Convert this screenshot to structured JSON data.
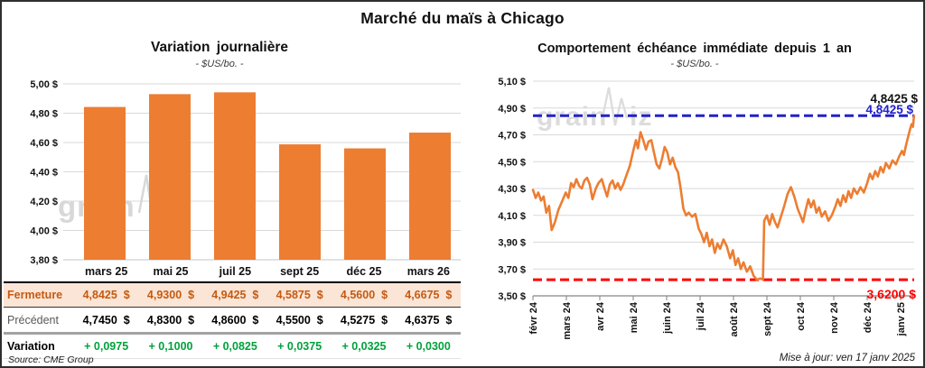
{
  "header": {
    "title": "Marché du maïs à Chicago"
  },
  "footer": {
    "source": "Source: CME Group",
    "updated": "Mise à jour: ven 17 janv 2025"
  },
  "watermark": {
    "part1": "grain",
    "part2": "iz"
  },
  "colors": {
    "orange": "#ED7D31",
    "blue": "#2121CC",
    "red": "#FE0000",
    "green": "#00A23C",
    "peach": "#FBE5D6",
    "dark_orange": "#C55A11",
    "grid": "#D9D9D9",
    "axis": "#9a9a9a",
    "watermark": "#DCDCDC"
  },
  "chart_data": [
    {
      "type": "bar",
      "title": "Variation journalière",
      "subtitle": "- $US/bo. -",
      "categories": [
        "mars 25",
        "mai 25",
        "juil 25",
        "sept 25",
        "déc 25",
        "mars 26"
      ],
      "values": [
        4.8425,
        4.93,
        4.9425,
        4.5875,
        4.56,
        4.6675
      ],
      "ylim": [
        3.8,
        5.0
      ],
      "grid": true,
      "yticks": [
        {
          "v": 5.0,
          "label": "5,00 $"
        },
        {
          "v": 4.8,
          "label": "4,80 $"
        },
        {
          "v": 4.6,
          "label": "4,60 $"
        },
        {
          "v": 4.4,
          "label": "4,40 $"
        },
        {
          "v": 4.2,
          "label": "4,20 $"
        },
        {
          "v": 4.0,
          "label": "4,00 $"
        },
        {
          "v": 3.8,
          "label": "3,80 $"
        }
      ]
    },
    {
      "type": "line",
      "title": "Comportement échéance immédiate depuis 1 an",
      "subtitle": "- $US/bo. -",
      "ylim": [
        3.5,
        5.1
      ],
      "grid": true,
      "xlabels": [
        "févr 24",
        "mars 24",
        "avr 24",
        "mai 24",
        "juin 24",
        "juil 24",
        "août 24",
        "sept 24",
        "oct 24",
        "nov 24",
        "déc 24",
        "janv 25"
      ],
      "yticks": [
        {
          "v": 5.1,
          "label": "5,10 $"
        },
        {
          "v": 4.9,
          "label": "4,90 $"
        },
        {
          "v": 4.7,
          "label": "4,70 $"
        },
        {
          "v": 4.5,
          "label": "4,50 $"
        },
        {
          "v": 4.3,
          "label": "4,30 $"
        },
        {
          "v": 4.1,
          "label": "4,10 $"
        },
        {
          "v": 3.9,
          "label": "3,90 $"
        },
        {
          "v": 3.7,
          "label": "3,70 $"
        },
        {
          "v": 3.5,
          "label": "3,50 $"
        }
      ],
      "reference_lines": [
        {
          "name": "last-close",
          "value": 4.8425,
          "style": "dashed",
          "color": "#2121CC"
        },
        {
          "name": "year-low",
          "value": 3.62,
          "style": "dashed",
          "color": "#FE0000"
        }
      ],
      "annotations": [
        {
          "name": "last-close-black",
          "text": "4,8425 $",
          "color": "#111111"
        },
        {
          "name": "last-close-blue",
          "text": "4,8425 $",
          "color": "#2121CC"
        },
        {
          "name": "year-low-red",
          "text": "3,6200 $",
          "color": "#FE0000"
        }
      ],
      "series": [
        {
          "name": "échéance immédiate",
          "points": [
            [
              0.0,
              4.29
            ],
            [
              0.08,
              4.23
            ],
            [
              0.16,
              4.27
            ],
            [
              0.24,
              4.21
            ],
            [
              0.32,
              4.24
            ],
            [
              0.4,
              4.12
            ],
            [
              0.48,
              4.17
            ],
            [
              0.56,
              3.99
            ],
            [
              0.66,
              4.05
            ],
            [
              0.76,
              4.14
            ],
            [
              0.88,
              4.21
            ],
            [
              0.98,
              4.27
            ],
            [
              1.06,
              4.23
            ],
            [
              1.14,
              4.34
            ],
            [
              1.22,
              4.31
            ],
            [
              1.3,
              4.37
            ],
            [
              1.38,
              4.32
            ],
            [
              1.46,
              4.3
            ],
            [
              1.54,
              4.36
            ],
            [
              1.62,
              4.38
            ],
            [
              1.7,
              4.33
            ],
            [
              1.78,
              4.22
            ],
            [
              1.88,
              4.3
            ],
            [
              1.96,
              4.34
            ],
            [
              2.06,
              4.37
            ],
            [
              2.14,
              4.3
            ],
            [
              2.22,
              4.24
            ],
            [
              2.3,
              4.33
            ],
            [
              2.38,
              4.36
            ],
            [
              2.46,
              4.3
            ],
            [
              2.54,
              4.34
            ],
            [
              2.62,
              4.29
            ],
            [
              2.7,
              4.33
            ],
            [
              2.8,
              4.4
            ],
            [
              2.9,
              4.47
            ],
            [
              3.0,
              4.58
            ],
            [
              3.08,
              4.66
            ],
            [
              3.14,
              4.6
            ],
            [
              3.22,
              4.72
            ],
            [
              3.3,
              4.66
            ],
            [
              3.38,
              4.59
            ],
            [
              3.46,
              4.65
            ],
            [
              3.54,
              4.66
            ],
            [
              3.62,
              4.57
            ],
            [
              3.7,
              4.48
            ],
            [
              3.78,
              4.45
            ],
            [
              3.86,
              4.52
            ],
            [
              3.94,
              4.61
            ],
            [
              4.02,
              4.57
            ],
            [
              4.1,
              4.48
            ],
            [
              4.18,
              4.53
            ],
            [
              4.26,
              4.46
            ],
            [
              4.34,
              4.42
            ],
            [
              4.42,
              4.3
            ],
            [
              4.5,
              4.15
            ],
            [
              4.58,
              4.1
            ],
            [
              4.66,
              4.12
            ],
            [
              4.76,
              4.09
            ],
            [
              4.86,
              4.11
            ],
            [
              4.96,
              4.0
            ],
            [
              5.04,
              3.96
            ],
            [
              5.12,
              3.9
            ],
            [
              5.2,
              3.97
            ],
            [
              5.28,
              3.87
            ],
            [
              5.36,
              3.92
            ],
            [
              5.44,
              3.82
            ],
            [
              5.52,
              3.89
            ],
            [
              5.6,
              3.85
            ],
            [
              5.7,
              3.92
            ],
            [
              5.8,
              3.87
            ],
            [
              5.9,
              3.78
            ],
            [
              5.98,
              3.84
            ],
            [
              6.06,
              3.73
            ],
            [
              6.14,
              3.78
            ],
            [
              6.22,
              3.7
            ],
            [
              6.3,
              3.75
            ],
            [
              6.4,
              3.68
            ],
            [
              6.5,
              3.72
            ],
            [
              6.6,
              3.65
            ],
            [
              6.7,
              3.62
            ],
            [
              6.8,
              3.63
            ],
            [
              6.88,
              3.62
            ],
            [
              6.92,
              4.06
            ],
            [
              7.0,
              4.1
            ],
            [
              7.08,
              4.03
            ],
            [
              7.16,
              4.11
            ],
            [
              7.24,
              4.05
            ],
            [
              7.32,
              4.01
            ],
            [
              7.42,
              4.09
            ],
            [
              7.52,
              4.17
            ],
            [
              7.62,
              4.26
            ],
            [
              7.72,
              4.31
            ],
            [
              7.82,
              4.24
            ],
            [
              7.92,
              4.15
            ],
            [
              8.0,
              4.1
            ],
            [
              8.08,
              4.05
            ],
            [
              8.16,
              4.14
            ],
            [
              8.24,
              4.22
            ],
            [
              8.32,
              4.16
            ],
            [
              8.4,
              4.21
            ],
            [
              8.48,
              4.12
            ],
            [
              8.56,
              4.16
            ],
            [
              8.64,
              4.09
            ],
            [
              8.74,
              4.13
            ],
            [
              8.84,
              4.06
            ],
            [
              8.94,
              4.1
            ],
            [
              9.04,
              4.16
            ],
            [
              9.12,
              4.22
            ],
            [
              9.2,
              4.17
            ],
            [
              9.28,
              4.25
            ],
            [
              9.36,
              4.2
            ],
            [
              9.44,
              4.28
            ],
            [
              9.52,
              4.23
            ],
            [
              9.6,
              4.3
            ],
            [
              9.7,
              4.26
            ],
            [
              9.8,
              4.31
            ],
            [
              9.9,
              4.27
            ],
            [
              10.0,
              4.34
            ],
            [
              10.08,
              4.41
            ],
            [
              10.16,
              4.37
            ],
            [
              10.24,
              4.43
            ],
            [
              10.32,
              4.39
            ],
            [
              10.4,
              4.46
            ],
            [
              10.48,
              4.42
            ],
            [
              10.56,
              4.49
            ],
            [
              10.66,
              4.45
            ],
            [
              10.76,
              4.51
            ],
            [
              10.86,
              4.48
            ],
            [
              10.96,
              4.54
            ],
            [
              11.04,
              4.58
            ],
            [
              11.1,
              4.55
            ],
            [
              11.16,
              4.62
            ],
            [
              11.22,
              4.68
            ],
            [
              11.28,
              4.74
            ],
            [
              11.33,
              4.78
            ],
            [
              11.37,
              4.76
            ],
            [
              11.4,
              4.8425
            ]
          ]
        }
      ]
    }
  ],
  "table": {
    "columns": [
      "mars 25",
      "mai 25",
      "juil 25",
      "sept 25",
      "déc 25",
      "mars 26"
    ],
    "rows": [
      {
        "label": "Fermeture",
        "style": "close",
        "values": [
          "4,8425  $",
          "4,9300  $",
          "4,9425  $",
          "4,5875  $",
          "4,5600  $",
          "4,6675  $"
        ]
      },
      {
        "label": "Précédent",
        "style": "prev",
        "values": [
          "4,7450  $",
          "4,8300  $",
          "4,8600  $",
          "4,5500  $",
          "4,5275  $",
          "4,6375  $"
        ]
      },
      {
        "label": "Variation",
        "style": "var",
        "values": [
          "+ 0,0975",
          "+ 0,1000",
          "+ 0,0825",
          "+ 0,0375",
          "+ 0,0325",
          "+ 0,0300"
        ]
      }
    ]
  }
}
